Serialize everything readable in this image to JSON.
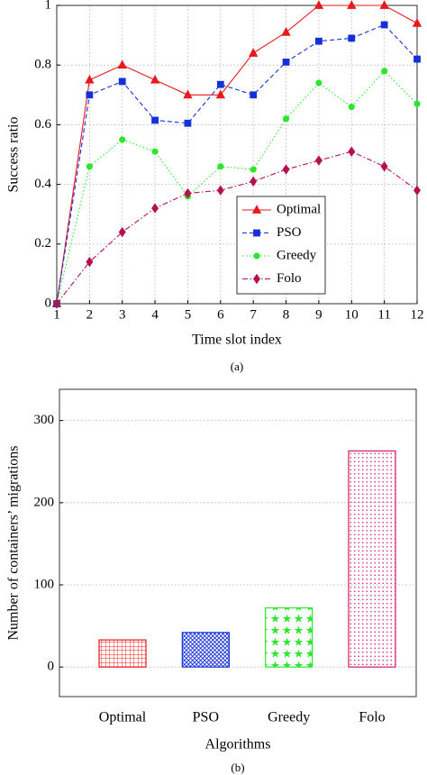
{
  "chart_data": [
    {
      "type": "line",
      "xlabel": "Time slot index",
      "ylabel": "Success ratio",
      "caption": "(a)",
      "x": [
        1,
        2,
        3,
        4,
        5,
        6,
        7,
        8,
        9,
        10,
        11,
        12
      ],
      "xlim": [
        1,
        12
      ],
      "xticks": [
        1,
        2,
        3,
        4,
        5,
        6,
        7,
        8,
        9,
        10,
        11,
        12
      ],
      "ylim": [
        0,
        1
      ],
      "yticks": [
        0,
        0.2,
        0.4,
        0.6,
        0.8,
        1
      ],
      "grid": true,
      "legend": "lower right",
      "series": [
        {
          "name": "Optimal",
          "color": "#e8191c",
          "marker": "triangle",
          "dash": "solid",
          "values": [
            0,
            0.75,
            0.8,
            0.75,
            0.7,
            0.7,
            0.84,
            0.91,
            1,
            1,
            1,
            0.94
          ]
        },
        {
          "name": "PSO",
          "color": "#1530d8",
          "marker": "square",
          "dash": "dashed",
          "values": [
            0,
            0.7,
            0.745,
            0.615,
            0.605,
            0.735,
            0.7,
            0.81,
            0.88,
            0.89,
            0.935,
            0.82
          ]
        },
        {
          "name": "Greedy",
          "color": "#2ee62e",
          "marker": "circle",
          "dash": "dotted",
          "values": [
            0,
            0.46,
            0.55,
            0.51,
            0.36,
            0.46,
            0.45,
            0.62,
            0.74,
            0.66,
            0.78,
            0.67
          ]
        },
        {
          "name": "Folo",
          "color": "#b5124a",
          "marker": "diamond",
          "dash": "dashdot",
          "values": [
            0,
            0.14,
            0.24,
            0.32,
            0.37,
            0.38,
            0.41,
            0.45,
            0.48,
            0.51,
            0.46,
            0.38
          ]
        }
      ]
    },
    {
      "type": "bar",
      "xlabel": "Algorithms",
      "ylabel": "Number of containers’ migrations",
      "caption": "(b)",
      "categories": [
        "Optimal",
        "PSO",
        "Greedy",
        "Folo"
      ],
      "values": [
        33,
        42,
        72,
        263
      ],
      "colors": [
        "#e8191c",
        "#1530d8",
        "#2ee62e",
        "#d81b60"
      ],
      "patterns": [
        "grid",
        "crosshatch",
        "stars",
        "dots"
      ],
      "ylim": [
        -36,
        338
      ],
      "yticks": [
        0,
        100,
        200,
        300
      ],
      "grid": true
    }
  ]
}
